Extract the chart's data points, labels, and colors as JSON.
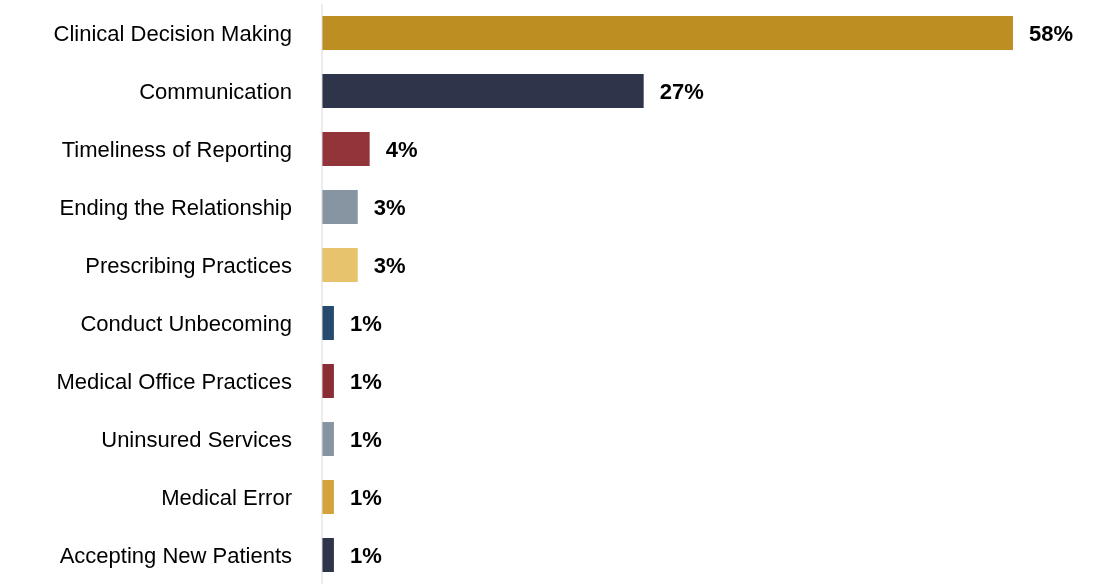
{
  "chart_data": {
    "type": "bar",
    "orientation": "horizontal",
    "categories": [
      "Clinical Decision Making",
      "Communication",
      "Timeliness of Reporting",
      "Ending the Relationship",
      "Prescribing Practices",
      "Conduct Unbecoming",
      "Medical Office Practices",
      "Uninsured Services",
      "Medical Error",
      "Accepting New Patients"
    ],
    "values": [
      58,
      27,
      4,
      3,
      3,
      1,
      1,
      1,
      1,
      1
    ],
    "value_labels": [
      "58%",
      "27%",
      "4%",
      "3%",
      "3%",
      "1%",
      "1%",
      "1%",
      "1%",
      "1%"
    ],
    "colors": [
      "#bd8f22",
      "#2e3449",
      "#93343a",
      "#8794a2",
      "#e6c36c",
      "#264a6e",
      "#8b2d35",
      "#8794a2",
      "#d4a23a",
      "#2e3449"
    ],
    "grid": false,
    "legend": false
  }
}
